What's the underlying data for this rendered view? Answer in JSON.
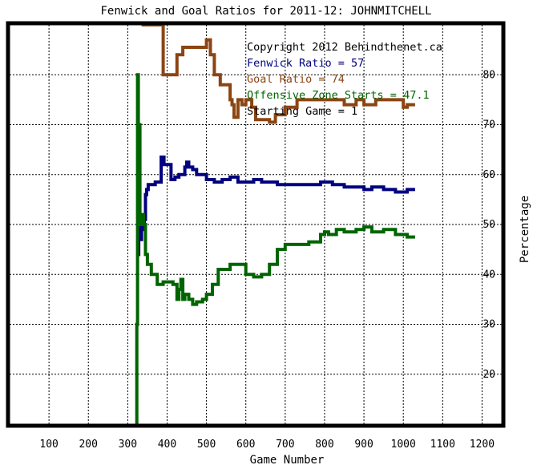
{
  "chart_data": {
    "type": "line",
    "title": "Fenwick and Goal Ratios for 2011-12: JOHNMITCHELL",
    "xlabel": "Game Number",
    "ylabel": "Percentage",
    "xlim": [
      0,
      1250
    ],
    "ylim": [
      10,
      90
    ],
    "xticks": [
      100,
      200,
      300,
      400,
      500,
      600,
      700,
      800,
      900,
      1000,
      1100,
      1200
    ],
    "yticks": [
      20,
      30,
      40,
      50,
      60,
      70,
      80
    ],
    "grid": true,
    "legend_position": "top-right",
    "legend": [
      {
        "text": "Copyright 2012 Behindthenet.ca",
        "color": "#000000"
      },
      {
        "text": "Fenwick Ratio = 57",
        "color": "#000080"
      },
      {
        "text": "Goal Ratio = 74",
        "color": "#8b4513"
      },
      {
        "text": "Offensive Zone Starts = 47.1",
        "color": "#006400"
      },
      {
        "text": "Starting Game = 1",
        "color": "#000000"
      }
    ],
    "series": [
      {
        "name": "Fenwick Ratio",
        "color": "#000080",
        "x": [
          325,
          328,
          332,
          335,
          338,
          342,
          345,
          348,
          352,
          360,
          370,
          385,
          392,
          400,
          410,
          420,
          430,
          440,
          445,
          450,
          455,
          465,
          475,
          485,
          500,
          520,
          540,
          560,
          580,
          600,
          620,
          640,
          660,
          680,
          700,
          730,
          760,
          790,
          820,
          850,
          880,
          900,
          920,
          950,
          980,
          1000,
          1010,
          1020,
          1030
        ],
        "y": [
          44,
          50,
          47,
          50,
          49,
          51,
          56,
          57,
          58,
          58,
          58.5,
          63.5,
          62,
          62,
          59,
          59.5,
          60,
          60,
          61.5,
          62.5,
          61.5,
          61,
          60,
          60,
          59,
          58.5,
          59,
          59.5,
          58.5,
          58.5,
          59,
          58.5,
          58.5,
          58,
          58,
          58,
          58,
          58.5,
          58,
          57.5,
          57.5,
          57,
          57.5,
          57,
          56.5,
          56.5,
          57,
          57,
          57
        ]
      },
      {
        "name": "Goal Ratio",
        "color": "#8b4513",
        "x": [
          335,
          345,
          365,
          380,
          390,
          400,
          410,
          420,
          425,
          440,
          460,
          495,
          500,
          510,
          520,
          535,
          550,
          560,
          565,
          570,
          580,
          590,
          600,
          615,
          625,
          640,
          660,
          675,
          700,
          730,
          760,
          800,
          850,
          880,
          900,
          930,
          960,
          990,
          1000,
          1010,
          1020,
          1030
        ],
        "y": [
          90,
          90,
          90,
          90,
          80,
          80,
          80,
          80,
          84,
          85.5,
          85.5,
          85.5,
          87,
          84,
          80,
          78,
          78,
          75,
          74,
          71.5,
          75,
          74,
          75,
          73.5,
          71,
          71,
          70.5,
          72,
          73.5,
          75,
          75,
          75,
          74,
          75,
          74,
          75,
          75,
          75,
          73.5,
          74,
          74,
          74
        ]
      },
      {
        "name": "Offensive Zone Starts",
        "color": "#006400",
        "x": [
          322,
          323,
          325,
          327,
          329,
          331,
          333,
          335,
          338,
          340,
          345,
          350,
          360,
          375,
          390,
          400,
          415,
          425,
          430,
          435,
          440,
          445,
          455,
          465,
          475,
          490,
          500,
          515,
          530,
          560,
          580,
          600,
          620,
          640,
          660,
          680,
          700,
          730,
          760,
          790,
          800,
          810,
          830,
          850,
          880,
          900,
          920,
          950,
          980,
          1000,
          1010,
          1020,
          1030
        ],
        "y": [
          10,
          30,
          80,
          60,
          70,
          50,
          52,
          50,
          52,
          50,
          44,
          42,
          40,
          38,
          38.5,
          38.5,
          38,
          35,
          37,
          39,
          35,
          36,
          35,
          34,
          34.5,
          35,
          36,
          38,
          41,
          42,
          42,
          40,
          39.5,
          40,
          42,
          45,
          46,
          46,
          46.5,
          48,
          48.5,
          48,
          49,
          48.5,
          49,
          49.5,
          48.5,
          49,
          48,
          48,
          47.5,
          47.5,
          47.5
        ]
      }
    ]
  }
}
